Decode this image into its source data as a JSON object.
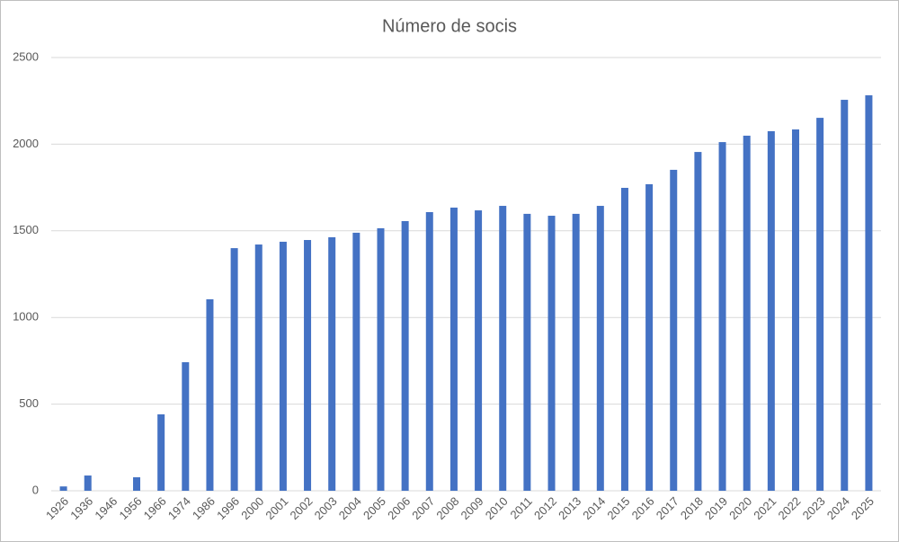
{
  "chart_data": {
    "type": "bar",
    "title": "Número de socis",
    "categories": [
      "1926",
      "1936",
      "1946",
      "1956",
      "1966",
      "1974",
      "1986",
      "1996",
      "2000",
      "2001",
      "2002",
      "2003",
      "2004",
      "2005",
      "2006",
      "2007",
      "2008",
      "2009",
      "2010",
      "2011",
      "2012",
      "2013",
      "2014",
      "2015",
      "2016",
      "2017",
      "2018",
      "2019",
      "2020",
      "2021",
      "2022",
      "2023",
      "2024",
      "2025"
    ],
    "values": [
      25,
      88,
      0,
      78,
      441,
      742,
      1105,
      1400,
      1421,
      1437,
      1447,
      1463,
      1489,
      1515,
      1556,
      1608,
      1634,
      1618,
      1644,
      1598,
      1587,
      1598,
      1644,
      1748,
      1769,
      1852,
      1955,
      2012,
      2049,
      2075,
      2085,
      2152,
      2256,
      2282
    ],
    "color": "#4472c4",
    "ylim": [
      0,
      2500
    ],
    "yticks": [
      0,
      500,
      1000,
      1500,
      2000,
      2500
    ],
    "grid": true
  }
}
